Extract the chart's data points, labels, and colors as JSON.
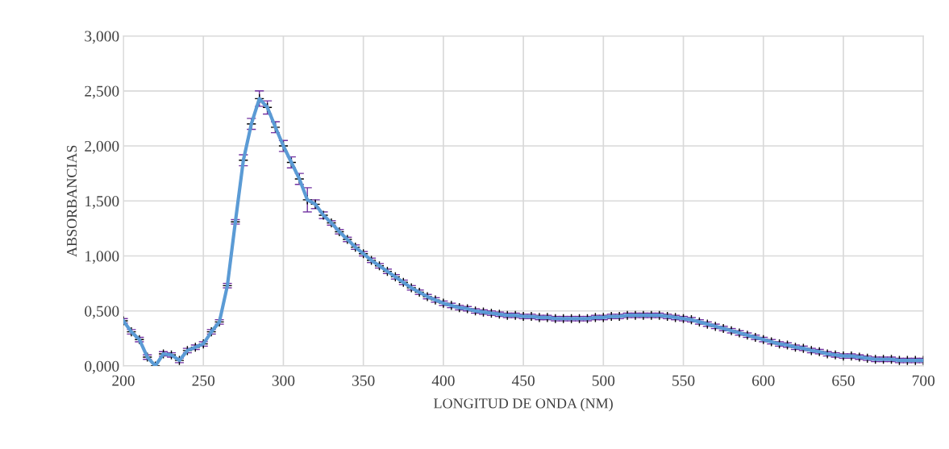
{
  "chart_data": {
    "type": "line",
    "xlabel": "LONGITUD DE ONDA (NM)",
    "ylabel": "ABSORBANCIAS",
    "x": [
      200,
      205,
      210,
      215,
      220,
      225,
      230,
      235,
      240,
      245,
      250,
      255,
      260,
      265,
      270,
      275,
      280,
      285,
      290,
      295,
      300,
      305,
      310,
      315,
      320,
      325,
      330,
      335,
      340,
      345,
      350,
      355,
      360,
      365,
      370,
      375,
      380,
      385,
      390,
      395,
      400,
      405,
      410,
      415,
      420,
      425,
      430,
      435,
      440,
      445,
      450,
      455,
      460,
      465,
      470,
      475,
      480,
      485,
      490,
      495,
      500,
      505,
      510,
      515,
      520,
      525,
      530,
      535,
      540,
      545,
      550,
      555,
      560,
      565,
      570,
      575,
      580,
      585,
      590,
      595,
      600,
      605,
      610,
      615,
      620,
      625,
      630,
      635,
      640,
      645,
      650,
      655,
      660,
      665,
      670,
      675,
      680,
      685,
      690,
      695,
      700
    ],
    "series": [
      {
        "color": "#5b9bd5",
        "values": [
          0.41,
          0.31,
          0.24,
          0.08,
          0.0,
          0.11,
          0.1,
          0.05,
          0.14,
          0.17,
          0.2,
          0.31,
          0.4,
          0.73,
          1.31,
          1.87,
          2.2,
          2.43,
          2.35,
          2.17,
          2.0,
          1.85,
          1.7,
          1.51,
          1.47,
          1.37,
          1.3,
          1.22,
          1.15,
          1.08,
          1.02,
          0.96,
          0.91,
          0.86,
          0.81,
          0.76,
          0.71,
          0.67,
          0.63,
          0.6,
          0.57,
          0.55,
          0.53,
          0.52,
          0.5,
          0.49,
          0.48,
          0.47,
          0.46,
          0.46,
          0.45,
          0.45,
          0.44,
          0.44,
          0.43,
          0.43,
          0.43,
          0.43,
          0.43,
          0.44,
          0.44,
          0.45,
          0.45,
          0.46,
          0.46,
          0.46,
          0.46,
          0.46,
          0.45,
          0.44,
          0.43,
          0.42,
          0.4,
          0.38,
          0.36,
          0.34,
          0.32,
          0.3,
          0.28,
          0.26,
          0.24,
          0.22,
          0.2,
          0.19,
          0.17,
          0.16,
          0.14,
          0.13,
          0.11,
          0.1,
          0.09,
          0.09,
          0.08,
          0.07,
          0.06,
          0.06,
          0.06,
          0.05,
          0.05,
          0.05,
          0.05
        ],
        "errors": [
          0.02,
          0.02,
          0.02,
          0.02,
          null,
          0.02,
          0.02,
          0.02,
          0.02,
          0.02,
          0.02,
          0.02,
          0.02,
          0.02,
          0.02,
          0.05,
          0.05,
          0.07,
          0.06,
          0.05,
          0.05,
          0.05,
          0.05,
          0.11,
          0.04,
          0.03,
          0.02,
          0.02,
          0.02,
          0.02,
          0.02,
          0.02,
          0.02,
          0.02,
          0.02,
          0.02,
          0.02,
          0.02,
          0.02,
          0.02,
          0.02,
          0.02,
          0.02,
          0.02,
          0.02,
          0.02,
          0.02,
          0.02,
          0.02,
          0.02,
          0.02,
          0.02,
          0.02,
          0.02,
          0.02,
          0.02,
          0.02,
          0.02,
          0.02,
          0.02,
          0.02,
          0.02,
          0.02,
          0.02,
          0.02,
          0.02,
          0.02,
          0.02,
          0.02,
          0.02,
          0.02,
          0.02,
          0.02,
          0.02,
          0.02,
          0.02,
          0.02,
          0.02,
          0.02,
          0.02,
          0.02,
          0.02,
          0.02,
          0.02,
          0.02,
          0.02,
          0.02,
          0.02,
          0.02,
          0.02,
          0.02,
          0.02,
          0.02,
          0.02,
          0.02,
          0.02,
          0.02,
          0.02,
          0.02,
          0.02,
          0.02
        ]
      }
    ],
    "xlim": [
      200,
      700
    ],
    "xticks": [
      200,
      250,
      300,
      350,
      400,
      450,
      500,
      550,
      600,
      650,
      700
    ],
    "ylim": [
      0,
      3
    ],
    "yticks": [
      {
        "value": 0,
        "label": "0,000"
      },
      {
        "value": 0.5,
        "label": "0,500"
      },
      {
        "value": 1,
        "label": "1,000"
      },
      {
        "value": 1.5,
        "label": "1,500"
      },
      {
        "value": 2,
        "label": "2,000"
      },
      {
        "value": 2.5,
        "label": "2,500"
      },
      {
        "value": 3,
        "label": "3,000"
      }
    ],
    "grid": true,
    "marker": "cross",
    "line_style": "solid"
  }
}
